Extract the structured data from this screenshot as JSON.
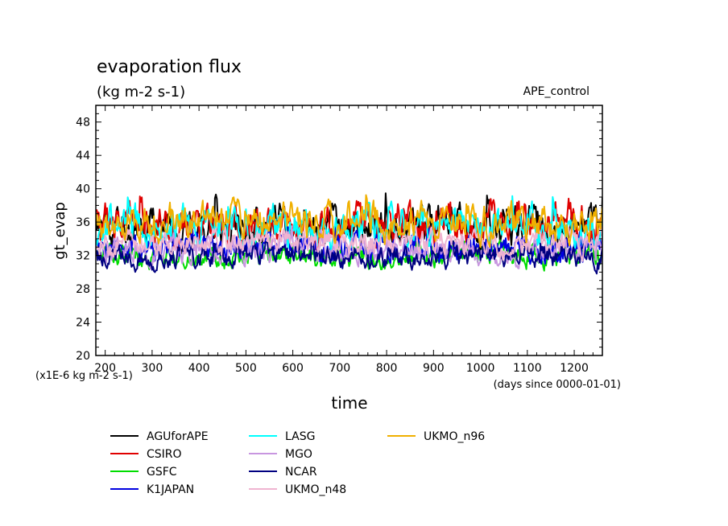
{
  "chart_data": {
    "type": "line",
    "title": "evaporation flux",
    "subtitle": "(kg m-2 s-1)",
    "tag": "APE_control",
    "xlabel": "time",
    "ylabel": "gt_evap",
    "x_unit_note": "(days since 0000-01-01)",
    "y_unit_note": "(x1E-6 kg m-2 s-1)",
    "xlim": [
      180,
      1260
    ],
    "ylim": [
      20,
      50
    ],
    "x_ticks": [
      "200",
      "300",
      "400",
      "500",
      "600",
      "700",
      "800",
      "900",
      "1000",
      "1100",
      "1200"
    ],
    "y_ticks": [
      "20",
      "24",
      "28",
      "32",
      "36",
      "40",
      "44",
      "48"
    ],
    "grid": false,
    "legend_placement": "bottom",
    "series": [
      {
        "name": "AGUforAPE",
        "color": "#000000",
        "mean": 35.5,
        "amp": 1.6,
        "min": 32.2,
        "max": 40.0,
        "seed": 11
      },
      {
        "name": "CSIRO",
        "color": "#e00000",
        "mean": 35.8,
        "amp": 1.6,
        "min": 32.5,
        "max": 40.6,
        "seed": 23
      },
      {
        "name": "GSFC",
        "color": "#00dd00",
        "mean": 31.9,
        "amp": 0.9,
        "min": 29.0,
        "max": 34.2,
        "seed": 37
      },
      {
        "name": "K1JAPAN",
        "color": "#0000e0",
        "mean": 32.8,
        "amp": 1.1,
        "min": 29.8,
        "max": 35.4,
        "seed": 41
      },
      {
        "name": "LASG",
        "color": "#00ffff",
        "mean": 35.5,
        "amp": 1.5,
        "min": 32.5,
        "max": 40.1,
        "seed": 53
      },
      {
        "name": "MGO",
        "color": "#c896e0",
        "mean": 32.6,
        "amp": 1.0,
        "min": 29.5,
        "max": 35.5,
        "seed": 67
      },
      {
        "name": "NCAR",
        "color": "#000080",
        "mean": 31.8,
        "amp": 0.9,
        "min": 29.2,
        "max": 34.0,
        "seed": 79
      },
      {
        "name": "UKMO_n48",
        "color": "#f0b4d0",
        "mean": 33.5,
        "amp": 1.0,
        "min": 30.5,
        "max": 36.0,
        "seed": 83
      },
      {
        "name": "UKMO_n96",
        "color": "#f0b000",
        "mean": 36.0,
        "amp": 1.4,
        "min": 33.0,
        "max": 40.2,
        "seed": 97
      }
    ]
  }
}
